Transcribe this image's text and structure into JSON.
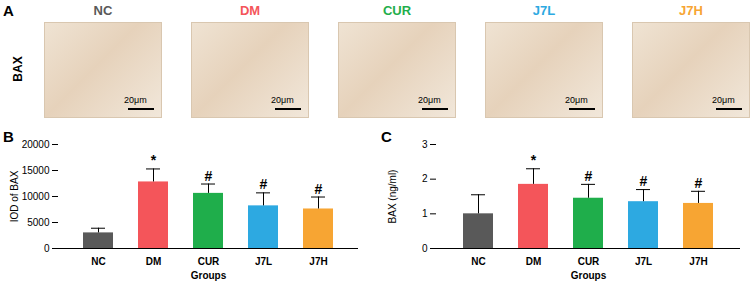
{
  "panel_a": {
    "panel_label": "A",
    "row_label": "BAX",
    "images": [
      {
        "label": "NC",
        "color": "#595959",
        "scale_bar": "20μm"
      },
      {
        "label": "DM",
        "color": "#f4555a",
        "scale_bar": "20μm"
      },
      {
        "label": "CUR",
        "color": "#1fae4b",
        "scale_bar": "20μm"
      },
      {
        "label": "J7L",
        "color": "#2da9e1",
        "scale_bar": "20μm"
      },
      {
        "label": "J7H",
        "color": "#f7a533",
        "scale_bar": "20μm"
      }
    ]
  },
  "chart_data": [
    {
      "type": "bar",
      "panel_label": "B",
      "x_label": "Groups",
      "y_label": "IOD of BAX",
      "categories": [
        "NC",
        "DM",
        "CUR",
        "J7L",
        "J7H"
      ],
      "values": [
        3000,
        12800,
        10600,
        8200,
        7600
      ],
      "errors": [
        900,
        2500,
        1800,
        2500,
        2300
      ],
      "annotations": [
        null,
        "*",
        "#",
        "#",
        "#"
      ],
      "colors": [
        "#595959",
        "#f4555a",
        "#1fae4b",
        "#2da9e1",
        "#f7a533"
      ],
      "ylim": [
        0,
        20000
      ],
      "yticks": [
        0,
        5000,
        10000,
        15000,
        20000
      ],
      "grid": false
    },
    {
      "type": "bar",
      "panel_label": "C",
      "x_label": "Groups",
      "y_label": "BAX (ng/ml)",
      "categories": [
        "NC",
        "DM",
        "CUR",
        "J7L",
        "J7H"
      ],
      "values": [
        1.0,
        1.85,
        1.45,
        1.35,
        1.3
      ],
      "errors": [
        0.55,
        0.45,
        0.4,
        0.35,
        0.35
      ],
      "annotations": [
        null,
        "*",
        "#",
        "#",
        "#"
      ],
      "colors": [
        "#595959",
        "#f4555a",
        "#1fae4b",
        "#2da9e1",
        "#f7a533"
      ],
      "ylim": [
        0,
        3
      ],
      "yticks": [
        0,
        1,
        2,
        3
      ],
      "grid": false
    }
  ]
}
